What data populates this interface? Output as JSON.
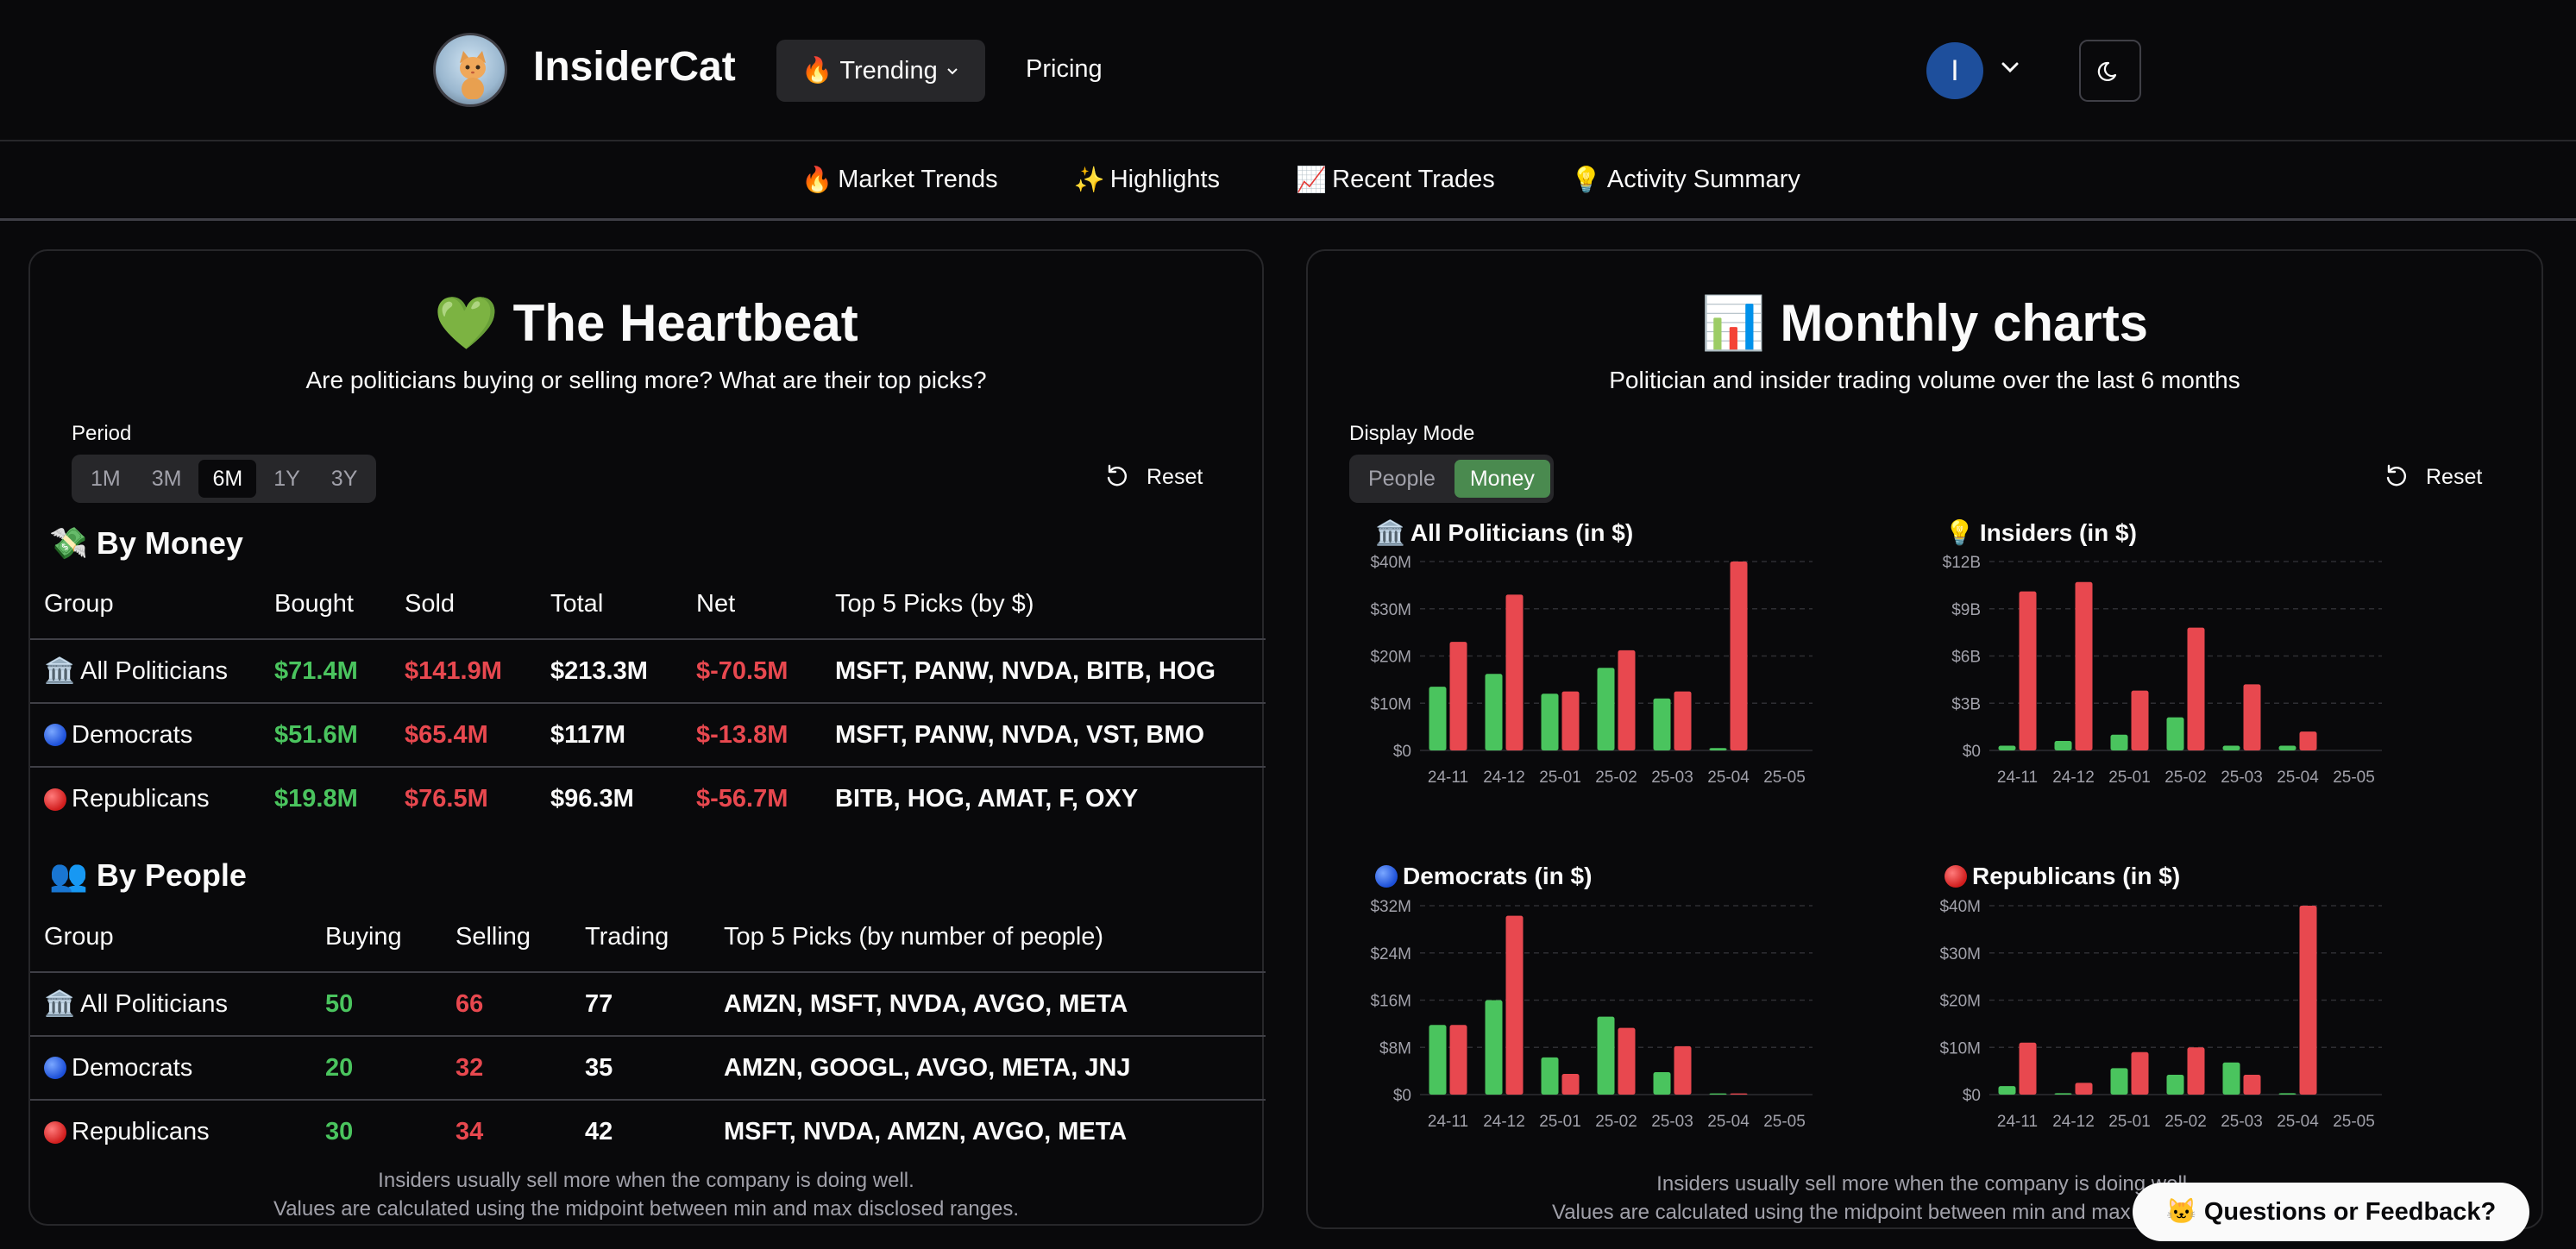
{
  "header": {
    "brand": "InsiderCat",
    "trending_icon": "🔥",
    "trending_label": "Trending",
    "pricing_label": "Pricing",
    "user_initial": "I"
  },
  "subnav": [
    {
      "icon": "🔥",
      "label": "Market Trends"
    },
    {
      "icon": "✨",
      "label": "Highlights"
    },
    {
      "icon": "📈",
      "label": "Recent Trades"
    },
    {
      "icon": "💡",
      "label": "Activity Summary"
    }
  ],
  "heartbeat": {
    "icon": "💚",
    "title": "The Heartbeat",
    "subtitle": "Are politicians buying or selling more? What are their top picks?",
    "period_label": "Period",
    "periods": [
      "1M",
      "3M",
      "6M",
      "1Y",
      "3Y"
    ],
    "selected_period": "6M",
    "reset_label": "Reset",
    "by_money": {
      "icon": "💸",
      "title": "By Money",
      "headers": [
        "Group",
        "Bought",
        "Sold",
        "Total",
        "Net",
        "Top 5 Picks (by $)"
      ],
      "rows": [
        {
          "icon": "🏛️",
          "group": "All Politicians",
          "bought": "$71.4M",
          "sold": "$141.9M",
          "total": "$213.3M",
          "net": "$-70.5M",
          "picks": "MSFT, PANW, NVDA, BITB, HOG"
        },
        {
          "icon": "blue-dot",
          "group": "Democrats",
          "bought": "$51.6M",
          "sold": "$65.4M",
          "total": "$117M",
          "net": "$-13.8M",
          "picks": "MSFT, PANW, NVDA, VST, BMO"
        },
        {
          "icon": "red-dot",
          "group": "Republicans",
          "bought": "$19.8M",
          "sold": "$76.5M",
          "total": "$96.3M",
          "net": "$-56.7M",
          "picks": "BITB, HOG, AMAT, F, OXY"
        }
      ]
    },
    "by_people": {
      "icon": "👥",
      "title": "By People",
      "headers": [
        "Group",
        "Buying",
        "Selling",
        "Trading",
        "Top 5 Picks (by number of people)"
      ],
      "rows": [
        {
          "icon": "🏛️",
          "group": "All Politicians",
          "buying": "50",
          "selling": "66",
          "trading": "77",
          "picks": "AMZN, MSFT, NVDA, AVGO, META"
        },
        {
          "icon": "blue-dot",
          "group": "Democrats",
          "buying": "20",
          "selling": "32",
          "trading": "35",
          "picks": "AMZN, GOOGL, AVGO, META, JNJ"
        },
        {
          "icon": "red-dot",
          "group": "Republicans",
          "buying": "30",
          "selling": "34",
          "trading": "42",
          "picks": "MSFT, NVDA, AMZN, AVGO, META"
        }
      ]
    },
    "note_line1": "Insiders usually sell more when the company is doing well.",
    "note_line2": "Values are calculated using the midpoint between min and max disclosed ranges."
  },
  "monthly": {
    "icon": "📊",
    "title": "Monthly charts",
    "subtitle": "Politician and insider trading volume over the last 6 months",
    "mode_label": "Display Mode",
    "modes": [
      "People",
      "Money"
    ],
    "selected_mode": "Money",
    "reset_label": "Reset",
    "note_line1": "Insiders usually sell more when the company is doing well.",
    "note_line2": "Values are calculated using the midpoint between min and max disclosed ranges."
  },
  "colors": {
    "buy": "#4ac45e",
    "sell": "#e8484f"
  },
  "chart_data": [
    {
      "type": "bar",
      "icon": "🏛️",
      "title": "All Politicians (in $)",
      "categories": [
        "24-11",
        "24-12",
        "25-01",
        "25-02",
        "25-03",
        "25-04",
        "25-05"
      ],
      "ylim": [
        0,
        40
      ],
      "ytick_values": [
        0,
        10,
        20,
        30,
        40
      ],
      "ytick_labels": [
        "$0",
        "$10M",
        "$20M",
        "$30M",
        "$40M"
      ],
      "series": [
        {
          "values": [
            13.5,
            16.2,
            12,
            17.5,
            11,
            0.5,
            0
          ]
        },
        {
          "values": [
            23,
            33,
            12.5,
            21.2,
            12.5,
            40,
            0
          ]
        }
      ]
    },
    {
      "type": "bar",
      "icon": "💡",
      "title": "Insiders (in $)",
      "categories": [
        "24-11",
        "24-12",
        "25-01",
        "25-02",
        "25-03",
        "25-04",
        "25-05"
      ],
      "ylim": [
        0,
        12
      ],
      "ytick_values": [
        0,
        3,
        6,
        9,
        12
      ],
      "ytick_labels": [
        "$0",
        "$3B",
        "$6B",
        "$9B",
        "$12B"
      ],
      "series": [
        {
          "values": [
            0.3,
            0.6,
            1.0,
            2.1,
            0.3,
            0.3,
            0
          ]
        },
        {
          "values": [
            10.1,
            10.7,
            3.8,
            7.8,
            4.2,
            1.2,
            0
          ]
        }
      ]
    },
    {
      "type": "bar",
      "icon": "blue-dot",
      "title": "Democrats (in $)",
      "categories": [
        "24-11",
        "24-12",
        "25-01",
        "25-02",
        "25-03",
        "25-04",
        "25-05"
      ],
      "ylim": [
        0,
        32
      ],
      "ytick_values": [
        0,
        8,
        16,
        24,
        32
      ],
      "ytick_labels": [
        "$0",
        "$8M",
        "$16M",
        "$24M",
        "$32M"
      ],
      "series": [
        {
          "values": [
            11.8,
            16,
            6.3,
            13.2,
            3.8,
            0.2,
            0
          ]
        },
        {
          "values": [
            11.8,
            30.3,
            3.5,
            11.3,
            8.2,
            0.2,
            0
          ]
        }
      ]
    },
    {
      "type": "bar",
      "icon": "red-dot",
      "title": "Republicans (in $)",
      "categories": [
        "24-11",
        "24-12",
        "25-01",
        "25-02",
        "25-03",
        "25-04",
        "25-05"
      ],
      "ylim": [
        0,
        40
      ],
      "ytick_values": [
        0,
        10,
        20,
        30,
        40
      ],
      "ytick_labels": [
        "$0",
        "$10M",
        "$20M",
        "$30M",
        "$40M"
      ],
      "series": [
        {
          "values": [
            1.8,
            0.3,
            5.6,
            4.2,
            6.8,
            0.3,
            0
          ]
        },
        {
          "values": [
            11,
            2.5,
            9,
            10,
            4.2,
            40,
            0
          ]
        }
      ]
    }
  ],
  "feedback": {
    "icon": "🐱",
    "label": "Questions or Feedback?"
  }
}
